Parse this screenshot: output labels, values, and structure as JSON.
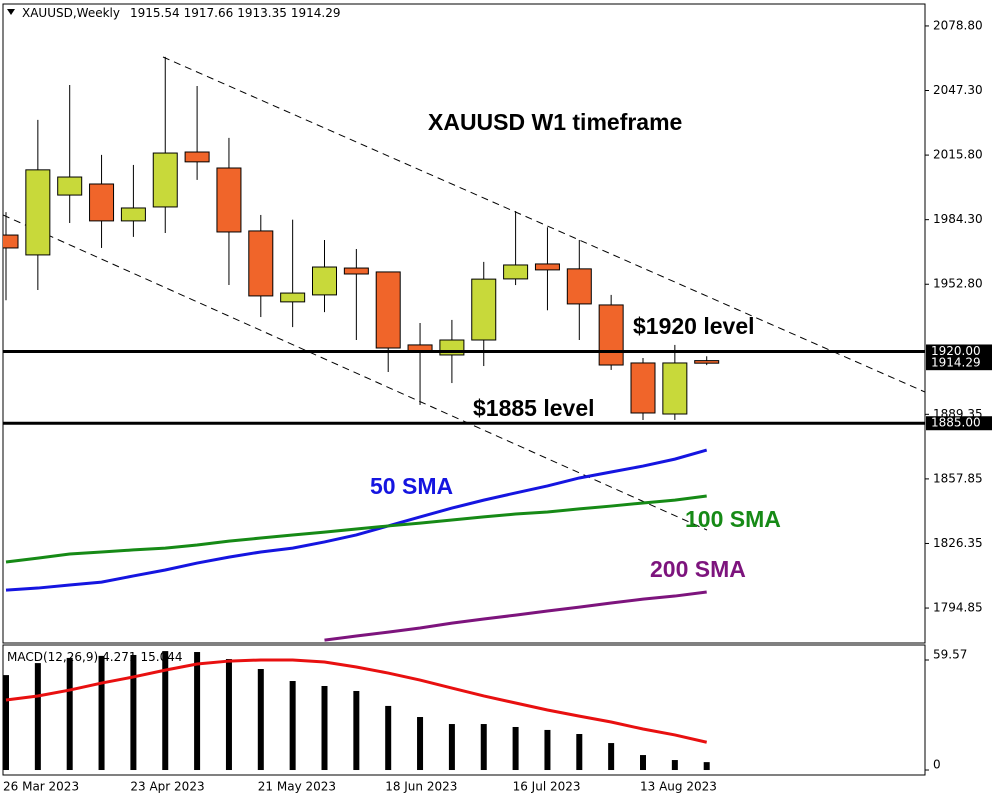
{
  "chart_data": [
    {
      "type": "candlestick",
      "title": "XAUUSD,Weekly",
      "categories": [
        "26 Mar 2023",
        null,
        null,
        null,
        "23 Apr 2023",
        null,
        null,
        null,
        "21 May 2023",
        null,
        null,
        null,
        "18 Jun 2023",
        null,
        null,
        null,
        "16 Jul 2023",
        null,
        null,
        null,
        "13 Aug 2023",
        null,
        null
      ],
      "open": [
        1976.8,
        1967.1,
        1996.3,
        2001.7,
        1983.7,
        1990.5,
        2017.3,
        2009.5,
        1978.8,
        1944.2,
        1947.6,
        1960.7,
        1958.8,
        1923.2,
        1918.3,
        1925.6,
        1955.4,
        1962.7,
        1960.3,
        1942.7,
        1914.4,
        1889.5,
        1915.54
      ],
      "high": [
        1988.0,
        2033.0,
        2050.0,
        2015.9,
        2011.0,
        2063.7,
        2049.5,
        2024.2,
        1986.6,
        1984.3,
        1974.4,
        1970.0,
        1958.8,
        1933.9,
        1935.4,
        1963.7,
        1988.5,
        1980.6,
        1974.4,
        1947.6,
        1916.8,
        1923.2,
        1917.66
      ],
      "low": [
        1945.0,
        1950.0,
        1982.7,
        1970.5,
        1975.9,
        1977.8,
        2003.7,
        1952.4,
        1936.8,
        1931.9,
        1939.2,
        1925.6,
        1910.0,
        1893.9,
        1904.6,
        1912.9,
        1952.4,
        1940.1,
        1925.6,
        1911.0,
        1886.6,
        1886.6,
        1913.35
      ],
      "close": [
        1970.5,
        2008.6,
        2005.1,
        1983.7,
        1990.0,
        2016.8,
        2012.5,
        1978.3,
        1947.1,
        1948.5,
        1961.2,
        1957.8,
        1921.7,
        1919.8,
        1925.6,
        1955.3,
        1962.2,
        1959.8,
        1943.2,
        1913.4,
        1890.0,
        1914.4,
        1914.29
      ],
      "up_color": "#c8d93a",
      "down_color": "#f0652a",
      "lines": [
        {
          "name": "50 SMA",
          "color": "#1515e0",
          "values": [
            1803.6,
            1804.6,
            1806.1,
            1807.5,
            1810.5,
            1813.4,
            1816.8,
            1819.7,
            1822.2,
            1824.1,
            1827.1,
            1830.5,
            1834.9,
            1839.3,
            1843.6,
            1847.5,
            1851.0,
            1854.4,
            1858.3,
            1861.2,
            1864.1,
            1867.5,
            1871.9
          ]
        },
        {
          "name": "100 SMA",
          "color": "#168a16",
          "values": [
            1817.3,
            1819.2,
            1821.2,
            1822.2,
            1823.2,
            1824.1,
            1825.6,
            1827.5,
            1829.0,
            1830.5,
            1831.9,
            1833.4,
            1834.9,
            1836.3,
            1837.8,
            1839.3,
            1840.7,
            1841.7,
            1843.2,
            1844.6,
            1846.1,
            1847.5,
            1849.5
          ]
        },
        {
          "name": "200 SMA",
          "color": "#7d147d",
          "values": [
            null,
            null,
            null,
            null,
            null,
            null,
            null,
            null,
            null,
            null,
            1779.2,
            1781.2,
            1783.1,
            1785.1,
            1787.5,
            1789.5,
            1791.4,
            1793.4,
            1795.3,
            1797.3,
            1799.2,
            1800.7,
            1802.7
          ]
        }
      ],
      "levels": [
        {
          "value": 1920,
          "label": "1920.00",
          "text": "$1920 level"
        },
        {
          "value": 1885,
          "label": "1885.00",
          "text": "$1885 level"
        }
      ],
      "annotations": [
        "XAUUSD W1 timeframe"
      ],
      "ylim": [
        1777.8,
        2089.5
      ],
      "yticks": [
        {
          "value": 2078.8,
          "label": "2078.80"
        },
        {
          "value": 2047.3,
          "label": "2047.30"
        },
        {
          "value": 2015.8,
          "label": "2015.80"
        },
        {
          "value": 1984.3,
          "label": "1984.30"
        },
        {
          "value": 1952.8,
          "label": "1952.80"
        },
        1889.35,
        1857.85,
        1826.35,
        1794.85
      ]
    },
    {
      "type": "macd",
      "title": "MACD(12,26,9)",
      "histogram": [
        51.4,
        57.9,
        60.7,
        61.8,
        62.3,
        64.4,
        63.9,
        60.1,
        54.7,
        48.2,
        45.5,
        42.8,
        34.7,
        28.7,
        24.9,
        24.9,
        23.3,
        21.7,
        19.5,
        14.6,
        8.1,
        5.4,
        4.271
      ],
      "signal": [
        37.9,
        40.1,
        43.3,
        47.1,
        50.4,
        54.1,
        57.4,
        59.0,
        59.6,
        59.6,
        58.5,
        55.8,
        52.5,
        48.7,
        44.4,
        40.1,
        36.3,
        32.5,
        29.2,
        26.0,
        22.2,
        19.0,
        15.044
      ],
      "histogram_color": "#000000",
      "signal_color": "#e81010",
      "ylim": [
        -2.7,
        67.7
      ],
      "yticks": [
        59.57,
        0
      ]
    }
  ]
}
